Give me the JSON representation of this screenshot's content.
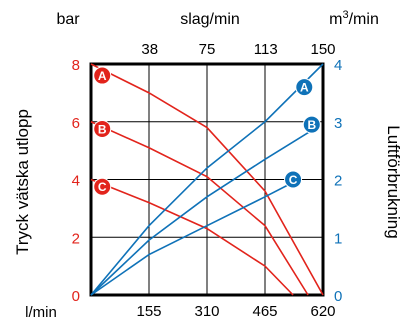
{
  "chart_data": {
    "type": "line",
    "x_bottom": {
      "unit": "l/min",
      "ticks": [
        0,
        155,
        310,
        465,
        620
      ],
      "tick_labels": [
        "",
        "155",
        "310",
        "465",
        "620"
      ],
      "range": [
        0,
        620
      ]
    },
    "x_top": {
      "unit": "slag/min",
      "ticks": [
        38,
        75,
        113,
        150
      ],
      "range": [
        0,
        150
      ]
    },
    "y_left": {
      "unit": "bar",
      "label": "Tryck vätska utlopp",
      "ticks": [
        0,
        2,
        4,
        6,
        8
      ],
      "range": [
        0,
        8
      ]
    },
    "y_right": {
      "unit_base": "m",
      "unit_sup": "3",
      "unit_tail": "/min",
      "label": "Luftförbrukning",
      "ticks": [
        0,
        1,
        2,
        3,
        4
      ],
      "range": [
        0,
        4
      ]
    },
    "grid": true,
    "pressure_series": [
      {
        "name": "A",
        "badge_at": [
          30,
          7.6
        ],
        "points": [
          [
            0,
            8
          ],
          [
            155,
            7.0
          ],
          [
            310,
            5.8
          ],
          [
            465,
            3.6
          ],
          [
            620,
            0
          ]
        ]
      },
      {
        "name": "B",
        "badge_at": [
          30,
          5.75
        ],
        "points": [
          [
            0,
            6
          ],
          [
            155,
            5.1
          ],
          [
            310,
            4.1
          ],
          [
            465,
            2.4
          ],
          [
            580,
            0
          ]
        ]
      },
      {
        "name": "C",
        "badge_at": [
          30,
          3.75
        ],
        "points": [
          [
            0,
            4
          ],
          [
            155,
            3.2
          ],
          [
            310,
            2.3
          ],
          [
            465,
            1.0
          ],
          [
            540,
            0
          ]
        ]
      }
    ],
    "air_series": [
      {
        "name": "A",
        "badge_at": [
          570,
          3.6
        ],
        "points": [
          [
            0,
            0
          ],
          [
            155,
            1.2
          ],
          [
            310,
            2.2
          ],
          [
            465,
            3.0
          ],
          [
            620,
            4.0
          ]
        ]
      },
      {
        "name": "B",
        "badge_at": [
          590,
          2.95
        ],
        "points": [
          [
            0,
            0
          ],
          [
            155,
            0.95
          ],
          [
            310,
            1.7
          ],
          [
            465,
            2.35
          ],
          [
            590,
            2.85
          ]
        ]
      },
      {
        "name": "C",
        "badge_at": [
          540,
          2.0
        ],
        "points": [
          [
            0,
            0
          ],
          [
            155,
            0.7
          ],
          [
            310,
            1.2
          ],
          [
            465,
            1.7
          ],
          [
            540,
            1.95
          ]
        ]
      }
    ],
    "colors": {
      "pressure": "#e2241c",
      "air": "#0f72b8",
      "grid": "#000000"
    }
  }
}
